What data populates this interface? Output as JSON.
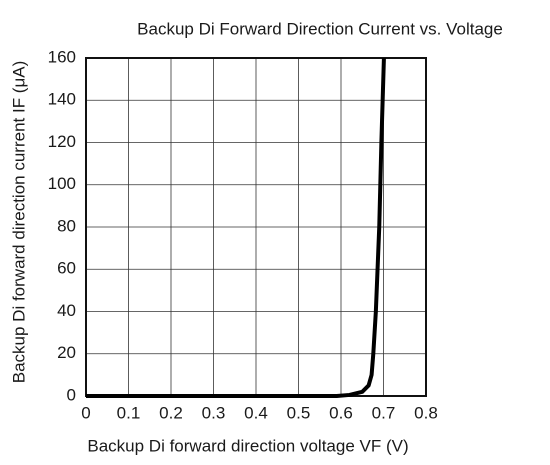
{
  "chart_data": {
    "type": "line",
    "title": "Backup Di Forward Direction Current vs. Voltage",
    "xlabel": "Backup Di forward direction  voltage VF (V)",
    "ylabel": "Backup Di  forward direction  current IF (μA)",
    "x": [
      0,
      0.59,
      0.62,
      0.65,
      0.665,
      0.672,
      0.676,
      0.682,
      0.69,
      0.695,
      0.701
    ],
    "series": [
      {
        "color": "#000000",
        "values": [
          0,
          0,
          0.5,
          2,
          5,
          10,
          20,
          40,
          80,
          120,
          160
        ]
      }
    ],
    "xlim": [
      0,
      0.8
    ],
    "xticks": [
      0,
      0.1,
      0.2,
      0.3,
      0.4,
      0.5,
      0.6,
      0.7,
      0.8
    ],
    "ylim": [
      0,
      160
    ],
    "yticks": [
      0,
      20,
      40,
      60,
      80,
      100,
      120,
      140,
      160
    ],
    "grid": true
  }
}
